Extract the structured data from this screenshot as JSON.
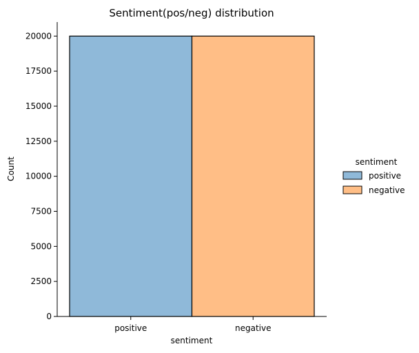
{
  "chart_data": {
    "type": "bar",
    "title": "Sentiment(pos/neg) distribution",
    "xlabel": "sentiment",
    "ylabel": "Count",
    "categories": [
      "positive",
      "negative"
    ],
    "values": [
      20000,
      20000
    ],
    "colors": [
      "#8fb9d9",
      "#ffbe86"
    ],
    "ylim": [
      0,
      21000
    ],
    "yticks": [
      0,
      2500,
      5000,
      7500,
      10000,
      12500,
      15000,
      17500,
      20000
    ],
    "grid": false,
    "legend": {
      "title": "sentiment",
      "placement": "right",
      "entries": [
        "positive",
        "negative"
      ]
    }
  }
}
